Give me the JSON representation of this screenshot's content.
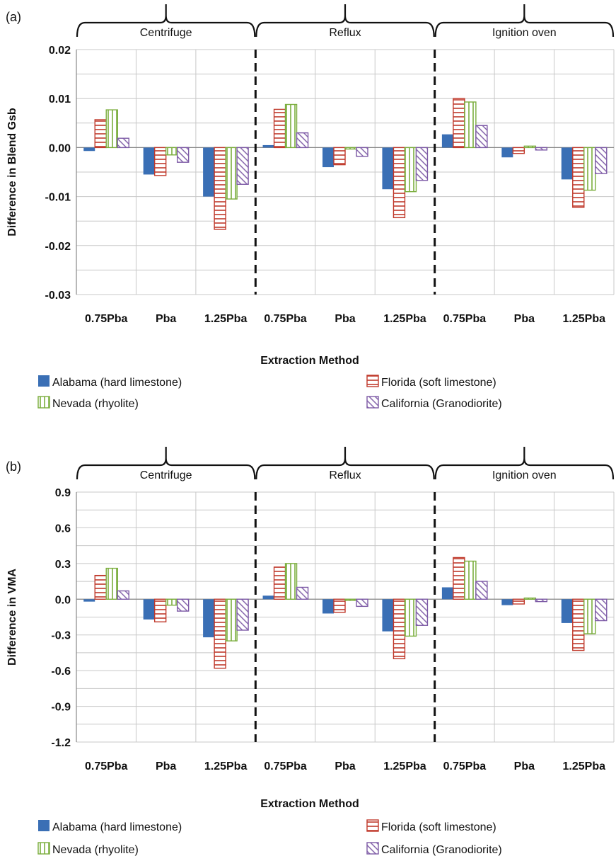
{
  "chart_data": [
    {
      "type": "bar",
      "panel_label": "(a)",
      "groups": [
        "Centrifuge",
        "Reflux",
        "Ignition oven"
      ],
      "categories": [
        "0.75Pba",
        "Pba",
        "1.25Pba",
        "0.75Pba",
        "Pba",
        "1.25Pba",
        "0.75Pba",
        "Pba",
        "1.25Pba"
      ],
      "xlabel": "Extraction Method",
      "ylabel": "Difference in Blend Gsb",
      "ylim": [
        -0.03,
        0.02
      ],
      "yticks": [
        0.02,
        0.01,
        0.0,
        -0.01,
        -0.02,
        -0.03
      ],
      "ytick_labels": [
        "0.02",
        "0.01",
        "0.00",
        "-0.01",
        "-0.02",
        "-0.03"
      ],
      "grid": true,
      "legend_position": "bottom",
      "series": [
        {
          "name": "Alabama (hard limestone)",
          "color": "#3a6fb5",
          "pattern": "solid",
          "values": [
            -0.0007,
            -0.0055,
            -0.01,
            0.0005,
            -0.004,
            -0.0085,
            0.0027,
            -0.002,
            -0.0065
          ]
        },
        {
          "name": "Florida (soft limestone)",
          "color": "#c0392b",
          "pattern": "horizontal",
          "values": [
            0.0057,
            -0.0057,
            -0.0167,
            0.0078,
            -0.0035,
            -0.0143,
            0.01,
            -0.0012,
            -0.0122
          ]
        },
        {
          "name": "Nevada (rhyolite)",
          "color": "#7aad3c",
          "pattern": "vertical",
          "values": [
            0.0077,
            -0.0015,
            -0.0105,
            0.0088,
            -0.0003,
            -0.009,
            0.0093,
            0.0003,
            -0.0087
          ]
        },
        {
          "name": "California (Granodiorite)",
          "color": "#7d5aa6",
          "pattern": "diagonal",
          "values": [
            0.0019,
            -0.003,
            -0.0075,
            0.003,
            -0.0018,
            -0.0067,
            0.0045,
            -0.0005,
            -0.0053
          ]
        }
      ]
    },
    {
      "type": "bar",
      "panel_label": "(b)",
      "groups": [
        "Centrifuge",
        "Reflux",
        "Ignition oven"
      ],
      "categories": [
        "0.75Pba",
        "Pba",
        "1.25Pba",
        "0.75Pba",
        "Pba",
        "1.25Pba",
        "0.75Pba",
        "Pba",
        "1.25Pba"
      ],
      "xlabel": "Extraction Method",
      "ylabel": "Difference in VMA",
      "ylim": [
        -1.2,
        0.9
      ],
      "yticks": [
        0.9,
        0.6,
        0.3,
        0.0,
        -0.3,
        -0.6,
        -0.9,
        -1.2
      ],
      "ytick_labels": [
        "0.9",
        "0.6",
        "0.3",
        "0.0",
        "-0.3",
        "-0.6",
        "-0.9",
        "-1.2"
      ],
      "grid": true,
      "legend_position": "bottom",
      "series": [
        {
          "name": "Alabama (hard limestone)",
          "color": "#3a6fb5",
          "pattern": "solid",
          "values": [
            -0.02,
            -0.17,
            -0.32,
            0.03,
            -0.12,
            -0.27,
            0.1,
            -0.05,
            -0.2
          ]
        },
        {
          "name": "Florida (soft limestone)",
          "color": "#c0392b",
          "pattern": "horizontal",
          "values": [
            0.2,
            -0.19,
            -0.58,
            0.27,
            -0.11,
            -0.5,
            0.35,
            -0.04,
            -0.43
          ]
        },
        {
          "name": "Nevada (rhyolite)",
          "color": "#7aad3c",
          "pattern": "vertical",
          "values": [
            0.26,
            -0.05,
            -0.35,
            0.3,
            -0.01,
            -0.31,
            0.32,
            0.01,
            -0.29
          ]
        },
        {
          "name": "California (Granodiorite)",
          "color": "#7d5aa6",
          "pattern": "diagonal",
          "values": [
            0.07,
            -0.1,
            -0.26,
            0.1,
            -0.06,
            -0.22,
            0.15,
            -0.02,
            -0.18
          ]
        }
      ]
    }
  ]
}
